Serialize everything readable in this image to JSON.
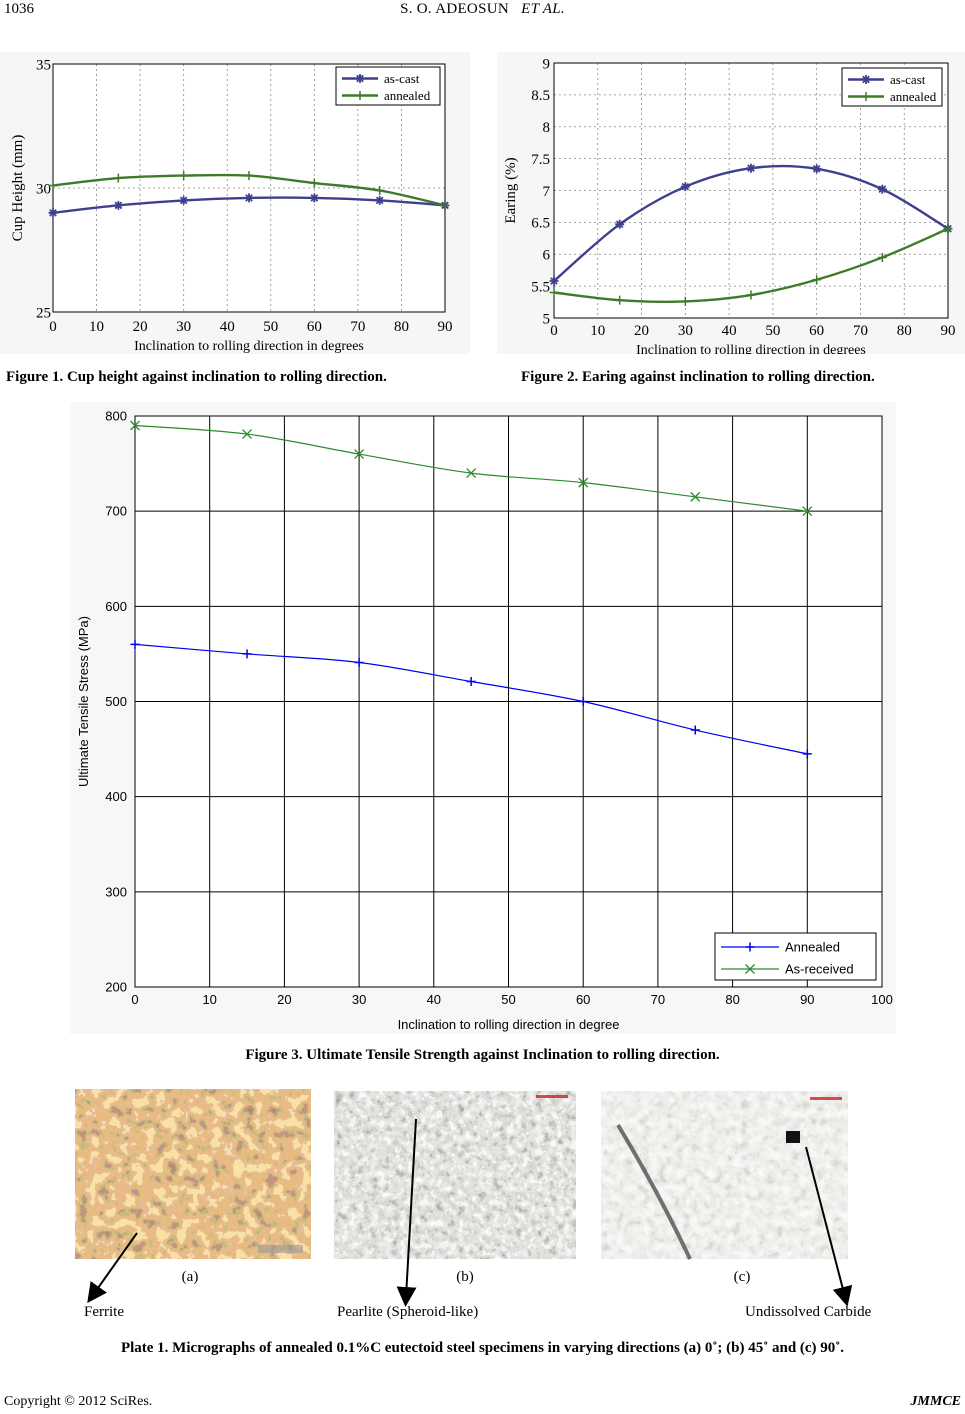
{
  "header": {
    "page_number": "1036",
    "running_title": "S. O. ADEOSUN",
    "running_title_italic": "ET AL."
  },
  "figures": {
    "fig1_caption": "Figure 1. Cup height against inclination to rolling direction.",
    "fig2_caption": "Figure 2. Earing against inclination to rolling direction.",
    "fig3_caption": "Figure 3. Ultimate Tensile Strength against Inclination to rolling direction.",
    "plate1_caption": "Plate 1. Micrographs of annealed 0.1%C eutectoid steel specimens in varying directions (a) 0˚; (b) 45˚ and (c) 90˚."
  },
  "plate": {
    "labels": [
      "(a)",
      "(b)",
      "(c)"
    ],
    "annotations": [
      "Ferrite",
      "Pearlite (Spheroid-like)",
      "Undissolved Carbide"
    ]
  },
  "footer": {
    "copyright": "Copyright © 2012 SciRes.",
    "journal": "JMMCE"
  },
  "chart_data": [
    {
      "id": "fig1",
      "type": "line",
      "xlabel": "Inclination to rolling direction in degrees",
      "ylabel": "Cup Height (mm)",
      "xlim": [
        0,
        90
      ],
      "ylim": [
        25,
        35
      ],
      "xticks": [
        0,
        10,
        20,
        30,
        40,
        50,
        60,
        70,
        80,
        90
      ],
      "yticks": [
        25,
        30,
        35
      ],
      "grid": true,
      "legend_position": "top-right",
      "x": [
        0,
        15,
        30,
        45,
        60,
        75,
        90
      ],
      "series": [
        {
          "name": "as-cast",
          "color": "#3f3f8f",
          "marker": "star",
          "values": [
            29.0,
            29.3,
            29.5,
            29.6,
            29.6,
            29.5,
            29.3
          ]
        },
        {
          "name": "annealed",
          "color": "#3d7a2a",
          "marker": "plus",
          "values": [
            30.1,
            30.4,
            30.5,
            30.5,
            30.2,
            29.9,
            29.3
          ]
        }
      ]
    },
    {
      "id": "fig2",
      "type": "line",
      "xlabel": "Inclination to rolling direction in degrees",
      "ylabel": "Earing (%)",
      "xlim": [
        0,
        90
      ],
      "ylim": [
        5,
        9
      ],
      "xticks": [
        0,
        10,
        20,
        30,
        40,
        50,
        60,
        70,
        80,
        90
      ],
      "yticks": [
        5,
        5.5,
        6,
        6.5,
        7,
        7.5,
        8,
        8.5,
        9
      ],
      "grid": true,
      "legend_position": "top-right",
      "x": [
        0,
        15,
        30,
        45,
        60,
        75,
        90
      ],
      "series": [
        {
          "name": "as-cast",
          "color": "#3f3f8f",
          "marker": "star",
          "values": [
            5.58,
            6.47,
            7.06,
            7.35,
            7.34,
            7.02,
            6.4
          ]
        },
        {
          "name": "annealed",
          "color": "#3d7a2a",
          "marker": "plus",
          "values": [
            5.4,
            5.28,
            5.26,
            5.36,
            5.6,
            5.95,
            6.4
          ]
        }
      ]
    },
    {
      "id": "fig3",
      "type": "line",
      "xlabel": "Inclination to rolling direction in degree",
      "ylabel": "Ultimate Tensile Stress (MPa)",
      "xlim": [
        0,
        100
      ],
      "ylim": [
        200,
        800
      ],
      "xticks": [
        0,
        10,
        20,
        30,
        40,
        50,
        60,
        70,
        80,
        90,
        100
      ],
      "yticks": [
        200,
        300,
        400,
        500,
        600,
        700,
        800
      ],
      "grid": true,
      "legend_position": "bottom-right",
      "x": [
        0,
        15,
        30,
        45,
        60,
        75,
        90
      ],
      "series": [
        {
          "name": "Annealed",
          "color": "#0000ee",
          "marker": "plus",
          "values": [
            560,
            550,
            541,
            521,
            500,
            470,
            445
          ]
        },
        {
          "name": "As-received",
          "color": "#2e8b2e",
          "marker": "x",
          "values": [
            790,
            781,
            760,
            740,
            730,
            715,
            700
          ]
        }
      ]
    }
  ]
}
